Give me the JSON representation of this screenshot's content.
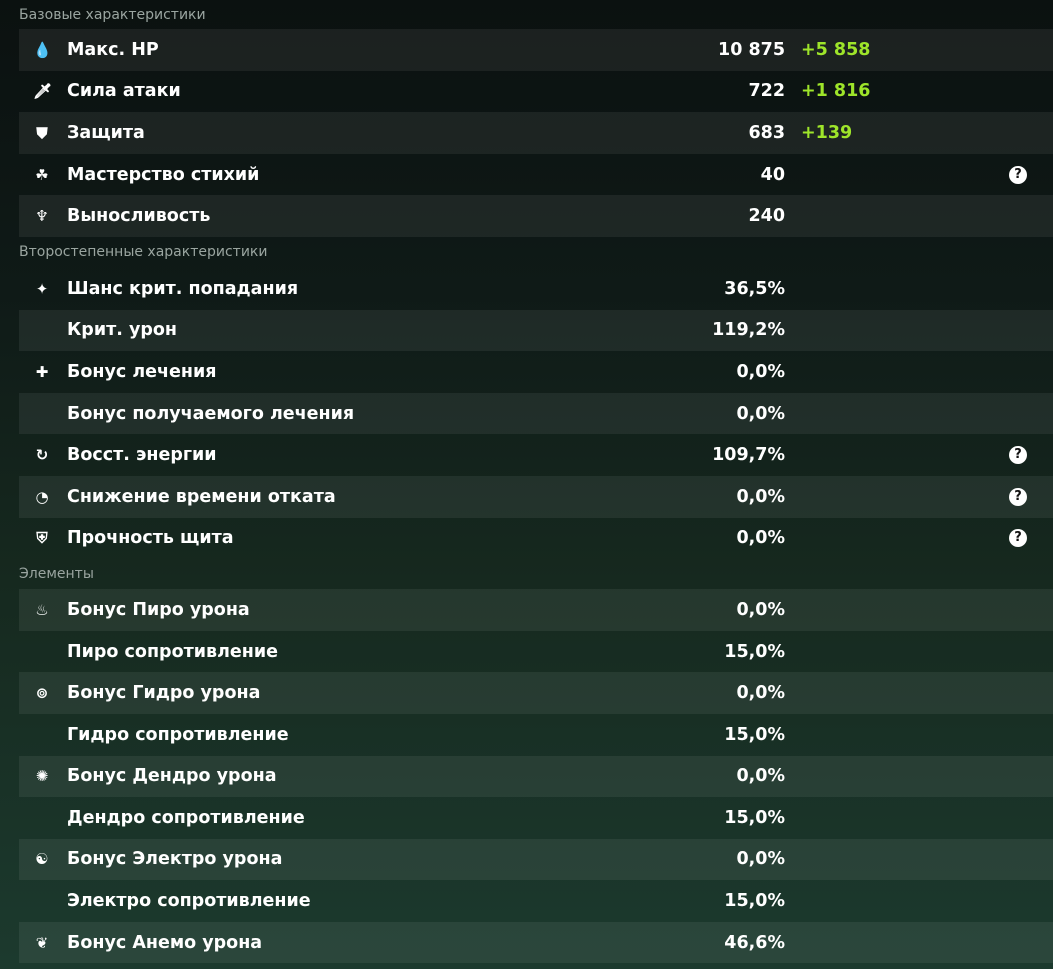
{
  "sections": [
    {
      "title": "Базовые характеристики",
      "rows": [
        {
          "icon": "hp-drop-icon",
          "glyph": "💧",
          "label": "Макс. HP",
          "value": "10 875",
          "bonus": "+5 858",
          "help": false
        },
        {
          "icon": "sword-icon",
          "glyph": "🗡",
          "label": "Сила атаки",
          "value": "722",
          "bonus": "+1 816",
          "help": false
        },
        {
          "icon": "shield-icon",
          "glyph": "⛊",
          "label": "Защита",
          "value": "683",
          "bonus": "+139",
          "help": false
        },
        {
          "icon": "elemental-mastery-icon",
          "glyph": "☘",
          "label": "Мастерство стихий",
          "value": "40",
          "bonus": "",
          "help": true
        },
        {
          "icon": "stamina-icon",
          "glyph": "♆",
          "label": "Выносливость",
          "value": "240",
          "bonus": "",
          "help": false
        }
      ]
    },
    {
      "title": "Второстепенные характеристики",
      "rows": [
        {
          "icon": "crit-rate-icon",
          "glyph": "✦",
          "label": "Шанс крит. попадания",
          "value": "36,5%",
          "bonus": "",
          "help": false
        },
        {
          "icon": "",
          "glyph": "",
          "label": "Крит. урон",
          "value": "119,2%",
          "bonus": "",
          "help": false
        },
        {
          "icon": "healing-cross-icon",
          "glyph": "✚",
          "label": "Бонус лечения",
          "value": "0,0%",
          "bonus": "",
          "help": false
        },
        {
          "icon": "",
          "glyph": "",
          "label": "Бонус получаемого лечения",
          "value": "0,0%",
          "bonus": "",
          "help": false
        },
        {
          "icon": "energy-recharge-icon",
          "glyph": "↻",
          "label": "Восст. энергии",
          "value": "109,7%",
          "bonus": "",
          "help": true
        },
        {
          "icon": "cooldown-icon",
          "glyph": "◔",
          "label": "Снижение времени отката",
          "value": "0,0%",
          "bonus": "",
          "help": true
        },
        {
          "icon": "shield-strength-icon",
          "glyph": "⛨",
          "label": "Прочность щита",
          "value": "0,0%",
          "bonus": "",
          "help": true
        }
      ]
    },
    {
      "title": "Элементы",
      "rows": [
        {
          "icon": "pyro-icon",
          "glyph": "♨",
          "label": "Бонус Пиро урона",
          "value": "0,0%",
          "bonus": "",
          "help": false
        },
        {
          "icon": "",
          "glyph": "",
          "label": "Пиро сопротивление",
          "value": "15,0%",
          "bonus": "",
          "help": false
        },
        {
          "icon": "hydro-icon",
          "glyph": "⊚",
          "label": "Бонус Гидро урона",
          "value": "0,0%",
          "bonus": "",
          "help": false
        },
        {
          "icon": "",
          "glyph": "",
          "label": "Гидро сопротивление",
          "value": "15,0%",
          "bonus": "",
          "help": false
        },
        {
          "icon": "dendro-icon",
          "glyph": "✺",
          "label": "Бонус Дендро урона",
          "value": "0,0%",
          "bonus": "",
          "help": false
        },
        {
          "icon": "",
          "glyph": "",
          "label": "Дендро сопротивление",
          "value": "15,0%",
          "bonus": "",
          "help": false
        },
        {
          "icon": "electro-icon",
          "glyph": "☯",
          "label": "Бонус Электро урона",
          "value": "0,0%",
          "bonus": "",
          "help": false
        },
        {
          "icon": "",
          "glyph": "",
          "label": "Электро сопротивление",
          "value": "15,0%",
          "bonus": "",
          "help": false
        },
        {
          "icon": "anemo-icon",
          "glyph": "❦",
          "label": "Бонус Анемо урона",
          "value": "46,6%",
          "bonus": "",
          "help": false
        }
      ]
    }
  ],
  "help_glyph": "?",
  "colors": {
    "bonus": "#9ee52a",
    "section_header": "#9aa5a0"
  }
}
